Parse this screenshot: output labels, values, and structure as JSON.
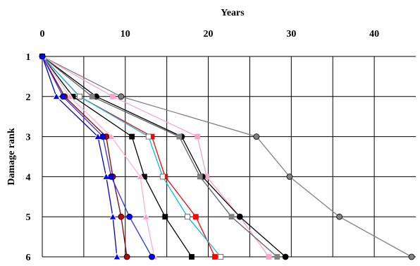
{
  "chart_data": {
    "type": "line",
    "title": "",
    "xlabel": "Years",
    "ylabel": "Damage rank",
    "x_axis_position": "top",
    "y_axis_inverted": true,
    "xlim": [
      0,
      45
    ],
    "ylim": [
      1,
      6
    ],
    "xticks": [
      0,
      10,
      20,
      30,
      40
    ],
    "yticks": [
      1,
      2,
      3,
      4,
      5,
      6
    ],
    "grid": true,
    "legend": "none",
    "series": [
      {
        "color": "#808080",
        "marker": "circle",
        "marker_color": "#808080",
        "points": [
          [
            0,
            1
          ],
          [
            9.5,
            2
          ],
          [
            25.8,
            3
          ],
          [
            29.8,
            4
          ],
          [
            35.8,
            5
          ],
          [
            44.5,
            6
          ]
        ]
      },
      {
        "color": "#f4a6c8",
        "marker": "square",
        "marker_color": "#f4a6c8",
        "points": [
          [
            0,
            1
          ],
          [
            8.5,
            2
          ],
          [
            18.7,
            3
          ],
          [
            19.8,
            4
          ],
          [
            23.8,
            5
          ],
          [
            27.3,
            6
          ]
        ]
      },
      {
        "color": "#000000",
        "marker": "circle",
        "marker_color": "#000000",
        "points": [
          [
            0,
            1
          ],
          [
            6.5,
            2
          ],
          [
            16.8,
            3
          ],
          [
            19.3,
            4
          ],
          [
            23.8,
            5
          ],
          [
            29.3,
            6
          ]
        ]
      },
      {
        "color": "#606060",
        "marker": "square",
        "marker_color": "#808080",
        "points": [
          [
            0,
            1
          ],
          [
            6.0,
            2
          ],
          [
            16.5,
            3
          ],
          [
            19.0,
            4
          ],
          [
            22.8,
            5
          ],
          [
            28.3,
            6
          ]
        ]
      },
      {
        "color": "#ff0000",
        "marker": "square",
        "marker_color": "#ff0000",
        "points": [
          [
            0,
            1
          ],
          [
            4.5,
            2
          ],
          [
            13.2,
            3
          ],
          [
            14.8,
            4
          ],
          [
            18.5,
            5
          ],
          [
            20.8,
            6
          ]
        ]
      },
      {
        "color": "#00c0e0",
        "marker": "square",
        "marker_color": "#ffffff",
        "points": [
          [
            0,
            1
          ],
          [
            4.5,
            2
          ],
          [
            12.8,
            3
          ],
          [
            14.5,
            4
          ],
          [
            17.5,
            5
          ],
          [
            21.5,
            6
          ]
        ]
      },
      {
        "color": "#000000",
        "marker": "square",
        "marker_color": "#000000",
        "points": [
          [
            0,
            1
          ],
          [
            3.7,
            2
          ],
          [
            10.8,
            3
          ],
          [
            12.3,
            4
          ],
          [
            14.8,
            5
          ],
          [
            18.0,
            6
          ]
        ]
      },
      {
        "color": "#ffb0d0",
        "marker": "triangle",
        "marker_color": "#ff9ec8",
        "points": [
          [
            0,
            1
          ],
          [
            3.3,
            2
          ],
          [
            8.3,
            3
          ],
          [
            11.8,
            4
          ],
          [
            12.5,
            5
          ],
          [
            13.5,
            6
          ]
        ]
      },
      {
        "color": "#8b0000",
        "marker": "circle",
        "marker_color": "#c00000",
        "points": [
          [
            0,
            1
          ],
          [
            2.7,
            2
          ],
          [
            7.7,
            3
          ],
          [
            8.5,
            4
          ],
          [
            9.5,
            5
          ],
          [
            10.2,
            6
          ]
        ]
      },
      {
        "color": "#0000c0",
        "marker": "triangle",
        "marker_color": "#0000ff",
        "points": [
          [
            0,
            1
          ],
          [
            1.7,
            2
          ],
          [
            6.7,
            3
          ],
          [
            7.7,
            4
          ],
          [
            8.5,
            5
          ],
          [
            9.0,
            6
          ]
        ]
      },
      {
        "color": "#3030ff",
        "marker": "circle",
        "marker_color": "#0000ff",
        "points": [
          [
            0,
            1
          ],
          [
            2.5,
            2
          ],
          [
            7.3,
            3
          ],
          [
            8.3,
            4
          ],
          [
            10.5,
            5
          ],
          [
            13.2,
            6
          ]
        ]
      }
    ]
  }
}
